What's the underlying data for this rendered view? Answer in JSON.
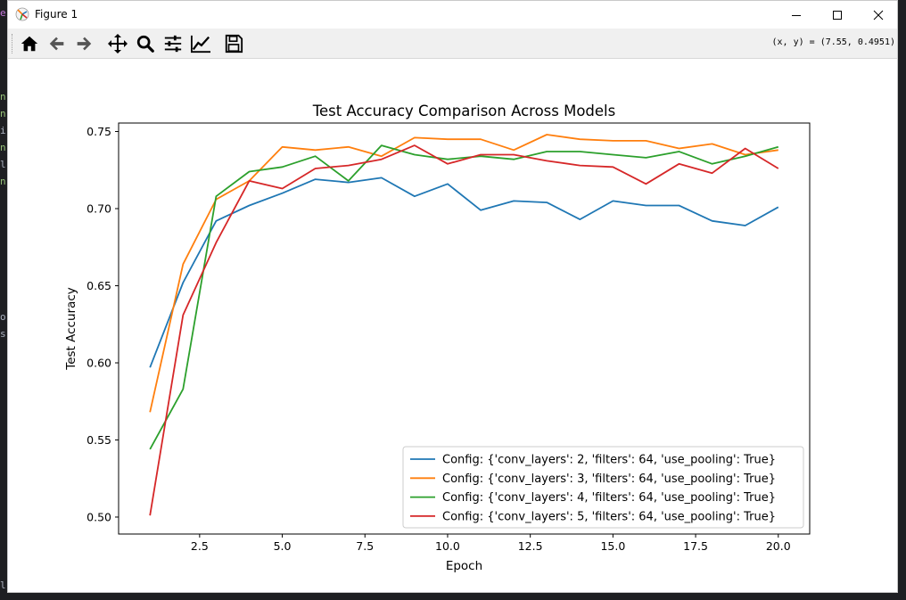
{
  "window": {
    "title": "Figure 1"
  },
  "toolbar": {
    "buttons": [
      {
        "name": "home-button",
        "icon": "home-icon"
      },
      {
        "name": "back-button",
        "icon": "arrow-left-icon"
      },
      {
        "name": "forward-button",
        "icon": "arrow-right-icon"
      },
      {
        "name": "pan-button",
        "icon": "move-icon"
      },
      {
        "name": "zoom-button",
        "icon": "magnifier-icon"
      },
      {
        "name": "subplots-button",
        "icon": "sliders-icon"
      },
      {
        "name": "edit-axes-button",
        "icon": "line-chart-icon"
      },
      {
        "name": "save-button",
        "icon": "floppy-icon"
      }
    ],
    "coordinates": "(x, y) = (7.55, 0.4951)"
  },
  "side_chars": [
    "e",
    "n",
    "n",
    "i",
    "n",
    "l",
    "n",
    "o",
    "s",
    "l"
  ],
  "chart_data": {
    "type": "line",
    "title": "Test Accuracy Comparison Across Models",
    "xlabel": "Epoch",
    "ylabel": "Test Accuracy",
    "xlim": [
      0.05,
      20.95
    ],
    "ylim": [
      0.489,
      0.7555
    ],
    "xticks": [
      2.5,
      5.0,
      7.5,
      10.0,
      12.5,
      15.0,
      17.5,
      20.0
    ],
    "xtick_labels": [
      "2.5",
      "5.0",
      "7.5",
      "10.0",
      "12.5",
      "15.0",
      "17.5",
      "20.0"
    ],
    "yticks": [
      0.5,
      0.55,
      0.6,
      0.65,
      0.7,
      0.75
    ],
    "ytick_labels": [
      "0.50",
      "0.55",
      "0.60",
      "0.65",
      "0.70",
      "0.75"
    ],
    "grid": false,
    "legend_position": "lower-right",
    "x": [
      1,
      2,
      3,
      4,
      5,
      6,
      7,
      8,
      9,
      10,
      11,
      12,
      13,
      14,
      15,
      16,
      17,
      18,
      19,
      20
    ],
    "series": [
      {
        "name": "Config: {'conv_layers': 2, 'filters': 64, 'use_pooling': True}",
        "color": "#1f77b4",
        "values": [
          0.597,
          0.652,
          0.692,
          0.702,
          0.71,
          0.719,
          0.717,
          0.72,
          0.708,
          0.716,
          0.699,
          0.705,
          0.704,
          0.693,
          0.705,
          0.702,
          0.702,
          0.692,
          0.689,
          0.701
        ]
      },
      {
        "name": "Config: {'conv_layers': 3, 'filters': 64, 'use_pooling': True}",
        "color": "#ff7f0e",
        "values": [
          0.568,
          0.664,
          0.706,
          0.718,
          0.74,
          0.738,
          0.74,
          0.734,
          0.746,
          0.745,
          0.745,
          0.738,
          0.748,
          0.745,
          0.744,
          0.744,
          0.739,
          0.742,
          0.735,
          0.738
        ]
      },
      {
        "name": "Config: {'conv_layers': 4, 'filters': 64, 'use_pooling': True}",
        "color": "#2ca02c",
        "values": [
          0.544,
          0.583,
          0.708,
          0.724,
          0.727,
          0.734,
          0.718,
          0.741,
          0.735,
          0.732,
          0.734,
          0.732,
          0.737,
          0.737,
          0.735,
          0.733,
          0.737,
          0.729,
          0.734,
          0.74
        ]
      },
      {
        "name": "Config: {'conv_layers': 5, 'filters': 64, 'use_pooling': True}",
        "color": "#d62728",
        "values": [
          0.501,
          0.631,
          0.678,
          0.718,
          0.713,
          0.726,
          0.728,
          0.732,
          0.741,
          0.729,
          0.735,
          0.735,
          0.731,
          0.728,
          0.727,
          0.716,
          0.729,
          0.723,
          0.739,
          0.726
        ]
      }
    ]
  }
}
